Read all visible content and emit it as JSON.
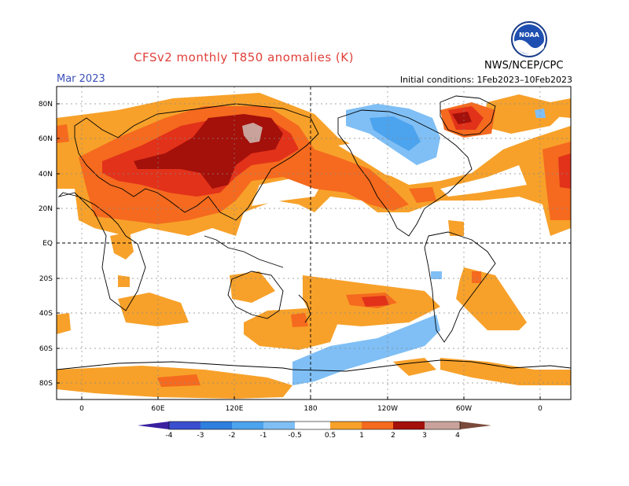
{
  "header": {
    "title": "CFSv2 monthly T850 anomalies (K)",
    "month": "Mar 2023",
    "initial_conditions": "Initial conditions: 1Feb2023–10Feb2023",
    "agency": "NWS/NCEP/CPC",
    "logo_text": "NOAA"
  },
  "map": {
    "lat_labels": [
      "80N",
      "60N",
      "40N",
      "20N",
      "EQ",
      "20S",
      "40S",
      "60S",
      "80S"
    ],
    "lon_labels": [
      "0",
      "60E",
      "120E",
      "180",
      "120W",
      "60W",
      "0"
    ],
    "colors": {
      "neg4": "#3a1fa0",
      "neg3": "#3a4fcf",
      "neg2": "#2f7fdf",
      "neg1": "#4ca3ee",
      "neg05": "#7fbff5",
      "pos05": "#f7a12a",
      "pos1": "#f56a1e",
      "pos2": "#e2321a",
      "pos3": "#a4100a",
      "pos4": "#c9a39b",
      "pos5": "#7a4a3a"
    }
  },
  "colorbar": {
    "labels": [
      "-4",
      "-3",
      "-2",
      "-1",
      "-0.5",
      "0.5",
      "1",
      "2",
      "3",
      "4"
    ]
  }
}
